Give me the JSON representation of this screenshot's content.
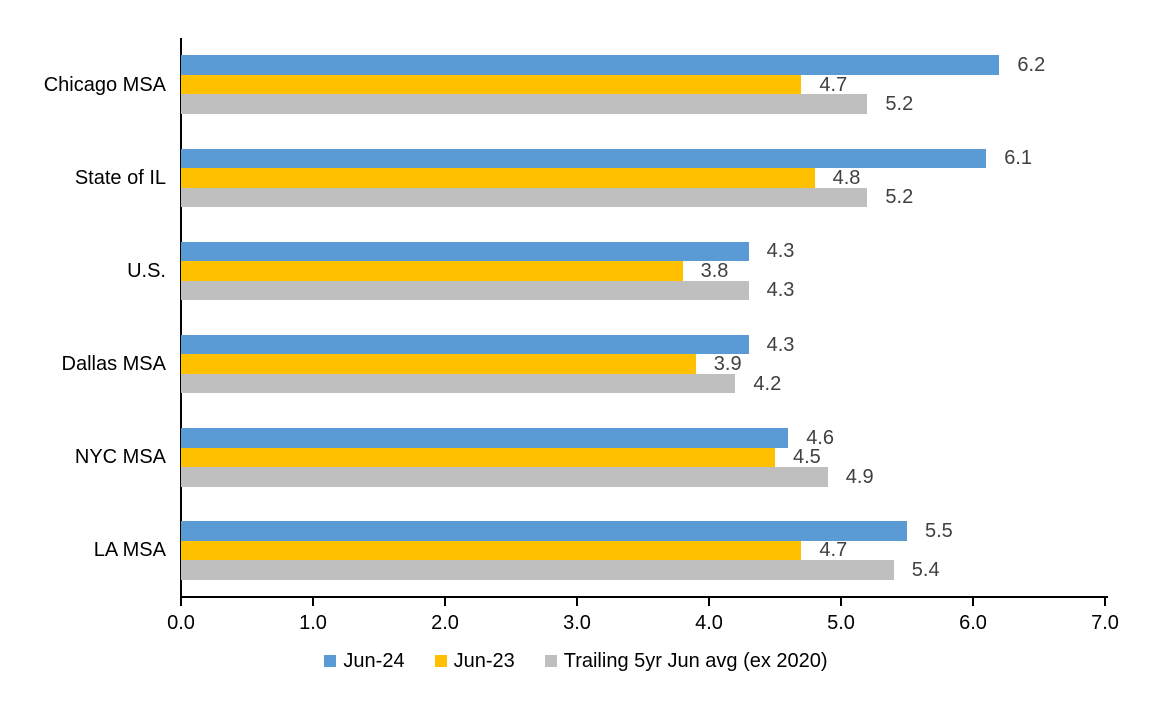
{
  "chart_data": {
    "type": "bar",
    "orientation": "horizontal",
    "categories": [
      "Chicago MSA",
      "State of IL",
      "U.S.",
      "Dallas MSA",
      "NYC MSA",
      "LA MSA"
    ],
    "series": [
      {
        "name": "Jun-24",
        "color": "#5B9BD5",
        "values": [
          6.2,
          6.1,
          4.3,
          4.3,
          4.6,
          5.5
        ]
      },
      {
        "name": "Jun-23",
        "color": "#FFC000",
        "values": [
          4.7,
          4.8,
          3.8,
          3.9,
          4.5,
          4.7
        ]
      },
      {
        "name": "Trailing 5yr Jun avg (ex 2020)",
        "color": "#BFBFBF",
        "values": [
          5.2,
          5.2,
          4.3,
          4.2,
          4.9,
          5.4
        ]
      }
    ],
    "xlim": [
      0,
      7
    ],
    "x_ticks": [
      "0.0",
      "1.0",
      "2.0",
      "3.0",
      "4.0",
      "5.0",
      "6.0",
      "7.0"
    ],
    "xlabel": "",
    "ylabel": "",
    "grid": false,
    "legend_position": "bottom",
    "data_labels": true,
    "colors": {
      "jun24_blue": "#5B9BD5",
      "jun23_yellow": "#FFC000",
      "trailing_gray": "#BFBFBF",
      "data_label_text": "#404040",
      "axis": "#000000"
    }
  }
}
